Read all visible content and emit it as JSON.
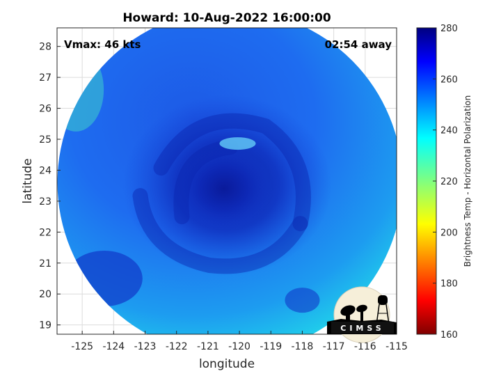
{
  "chart_data": {
    "type": "heatmap",
    "title": "Howard: 10-Aug-2022 16:00:00",
    "xlabel": "longitude",
    "ylabel": "latitude",
    "xlim": [
      -125.8,
      -115
    ],
    "ylim": [
      18.7,
      28.6
    ],
    "xticks": [
      -125,
      -124,
      -123,
      -122,
      -121,
      -120,
      -119,
      -118,
      -117,
      -116,
      -115
    ],
    "yticks": [
      19,
      20,
      21,
      22,
      23,
      24,
      25,
      26,
      27,
      28
    ],
    "grid": true,
    "annotations": {
      "vmax": "Vmax: 46 kts",
      "time_away": "02:54 away",
      "logo_text": "CIMSS"
    },
    "colorbar": {
      "label": "Brightness Temp - Horizontal Polarization",
      "range": [
        160,
        280
      ],
      "ticks": [
        160,
        180,
        200,
        220,
        240,
        260,
        280
      ],
      "colormap": "jet",
      "placement": "right"
    },
    "swath": {
      "center_lon": -120.3,
      "center_lat": 23.6,
      "shape": "circle"
    },
    "storm_center": {
      "lon": -120.5,
      "lat": 23.4
    },
    "colors": {
      "background_swath": "#1e6cf0",
      "warm_edge": "#1fc8e8",
      "cold_core": "#0a1fa8"
    }
  }
}
